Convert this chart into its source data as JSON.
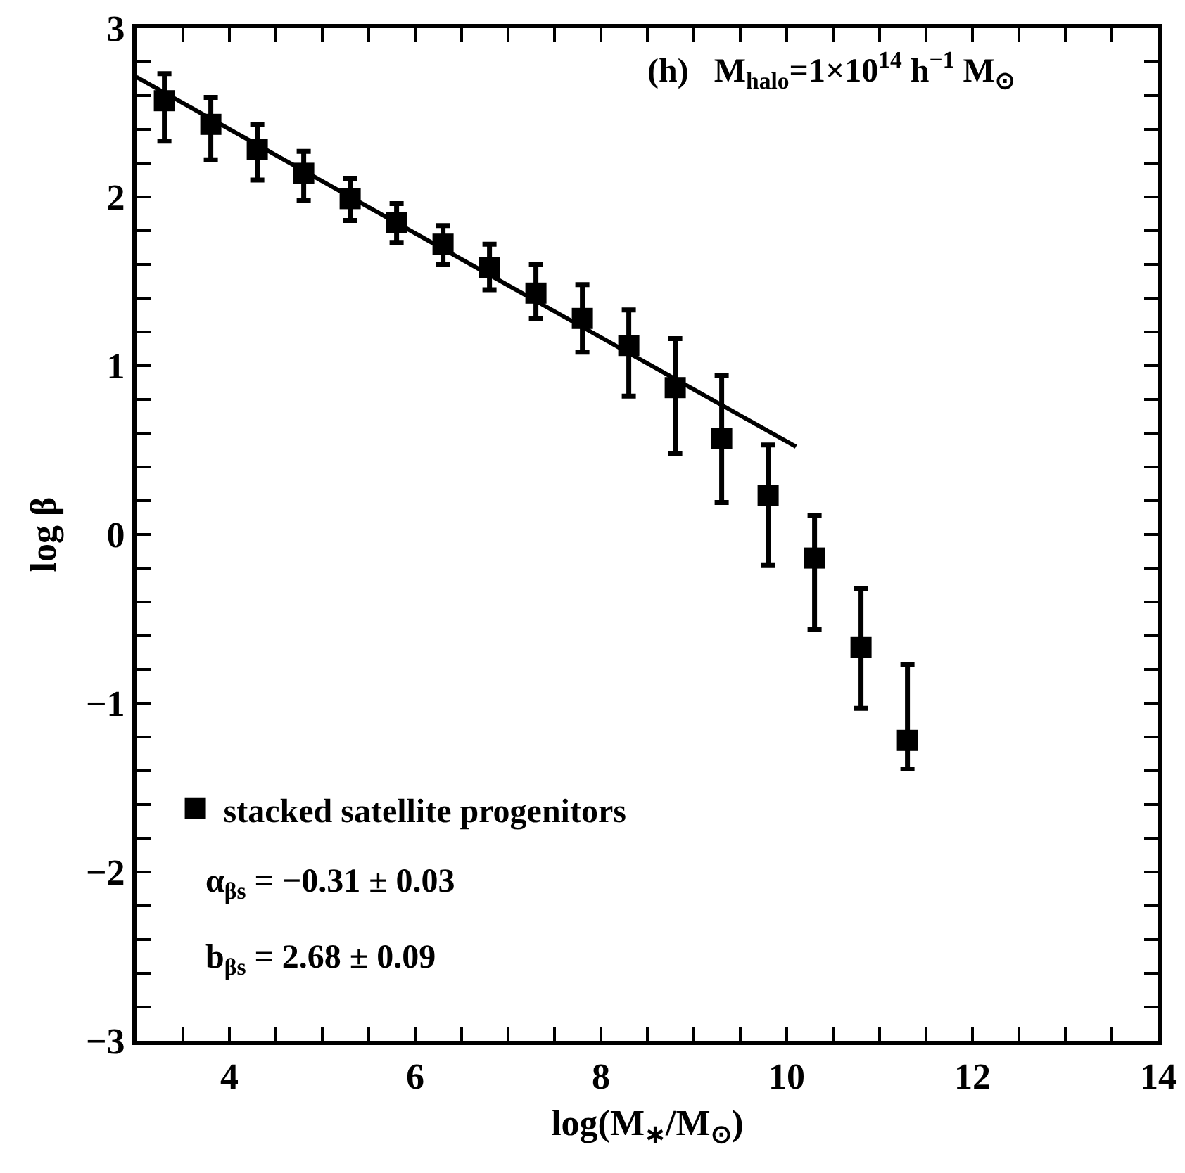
{
  "chart_data": {
    "type": "scatter",
    "title": "(h)   M$_{halo}$=1×10$^{14}$ h$^{−1}$ M$_{⊙}$",
    "xlabel": "log(M$_{∗}$/M$_{⊙}$)",
    "ylabel": "log β",
    "annotations": [
      "α$_{βs}$ = −0.31 ± 0.03",
      "b$_{βs}$ = 2.68 ± 0.09"
    ],
    "x": [
      3.3,
      3.8,
      4.3,
      4.8,
      5.3,
      5.8,
      6.3,
      6.8,
      7.3,
      7.8,
      8.3,
      8.8,
      9.3,
      9.8,
      10.3,
      10.8,
      11.3
    ],
    "series": [
      {
        "name": "stacked satellite progenitors",
        "color": "#000000",
        "marker": "square",
        "values": [
          2.57,
          2.43,
          2.28,
          2.14,
          1.99,
          1.85,
          1.72,
          1.58,
          1.43,
          1.28,
          1.12,
          0.87,
          0.57,
          0.23,
          -0.14,
          -0.67,
          -1.22
        ],
        "errors": [
          [
            2.33,
            2.73
          ],
          [
            2.22,
            2.59
          ],
          [
            2.1,
            2.43
          ],
          [
            1.98,
            2.27
          ],
          [
            1.86,
            2.11
          ],
          [
            1.73,
            1.96
          ],
          [
            1.6,
            1.83
          ],
          [
            1.45,
            1.72
          ],
          [
            1.28,
            1.6
          ],
          [
            1.08,
            1.48
          ],
          [
            0.82,
            1.33
          ],
          [
            0.48,
            1.16
          ],
          [
            0.19,
            0.94
          ],
          [
            -0.18,
            0.53
          ],
          [
            -0.56,
            0.11
          ],
          [
            -1.03,
            -0.32
          ],
          [
            -1.39,
            -0.77
          ]
        ]
      },
      {
        "type": "line",
        "color": "#000000",
        "line_style": "solid",
        "marker": "none",
        "x": [
          3,
          10.1
        ],
        "values": [
          2.71,
          0.52
        ]
      }
    ],
    "xlim": [
      3,
      14
    ],
    "xticks": [
      {
        "value": 3.5,
        "label": null
      },
      4,
      {
        "value": 4.5,
        "label": null
      },
      {
        "value": 5,
        "label": null
      },
      {
        "value": 5.5,
        "label": null
      },
      6,
      {
        "value": 6.5,
        "label": null
      },
      {
        "value": 7,
        "label": null
      },
      {
        "value": 7.5,
        "label": null
      },
      8,
      {
        "value": 8.5,
        "label": null
      },
      {
        "value": 9,
        "label": null
      },
      {
        "value": 9.5,
        "label": null
      },
      10,
      {
        "value": 10.5,
        "label": null
      },
      {
        "value": 11,
        "label": null
      },
      {
        "value": 11.5,
        "label": null
      },
      12,
      {
        "value": 12.5,
        "label": null
      },
      {
        "value": 13,
        "label": null
      },
      {
        "value": 13.5,
        "label": null
      },
      14
    ],
    "ylim": [
      -3,
      3
    ],
    "yticks": [
      {
        "value": -3,
        "label": "−3"
      },
      {
        "value": -2.8,
        "label": null
      },
      {
        "value": -2.6,
        "label": null
      },
      {
        "value": -2.4,
        "label": null
      },
      {
        "value": -2.2,
        "label": null
      },
      {
        "value": -2,
        "label": "−2"
      },
      {
        "value": -1.8,
        "label": null
      },
      {
        "value": -1.6,
        "label": null
      },
      {
        "value": -1.4,
        "label": null
      },
      {
        "value": -1.2,
        "label": null
      },
      {
        "value": -1,
        "label": "−1"
      },
      {
        "value": -0.8,
        "label": null
      },
      {
        "value": -0.6,
        "label": null
      },
      {
        "value": -0.4,
        "label": null
      },
      {
        "value": -0.2,
        "label": null
      },
      0,
      {
        "value": 0.2,
        "label": null
      },
      {
        "value": 0.4,
        "label": null
      },
      {
        "value": 0.6,
        "label": null
      },
      {
        "value": 0.8,
        "label": null
      },
      1,
      {
        "value": 1.2,
        "label": null
      },
      {
        "value": 1.4,
        "label": null
      },
      {
        "value": 1.6,
        "label": null
      },
      {
        "value": 1.8,
        "label": null
      },
      2,
      {
        "value": 2.2,
        "label": null
      },
      {
        "value": 2.4,
        "label": null
      },
      {
        "value": 2.6,
        "label": null
      },
      {
        "value": 2.8,
        "label": null
      },
      3
    ],
    "grid": false,
    "legend": "bottom left"
  }
}
